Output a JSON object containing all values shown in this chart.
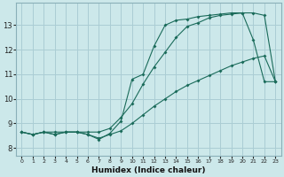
{
  "xlabel": "Humidex (Indice chaleur)",
  "background_color": "#cce8ea",
  "grid_color": "#aacdd4",
  "line_color": "#1a6b5a",
  "xlim": [
    -0.5,
    23.5
  ],
  "ylim": [
    7.7,
    13.9
  ],
  "xticks": [
    0,
    1,
    2,
    3,
    4,
    5,
    6,
    7,
    8,
    9,
    10,
    11,
    12,
    13,
    14,
    15,
    16,
    17,
    18,
    19,
    20,
    21,
    22,
    23
  ],
  "yticks": [
    8,
    9,
    10,
    11,
    12,
    13
  ],
  "series1_x": [
    0,
    1,
    2,
    3,
    4,
    5,
    6,
    7,
    8,
    9,
    10,
    11,
    12,
    13,
    14,
    15,
    16,
    17,
    18,
    19,
    20,
    21,
    22,
    23
  ],
  "series1_y": [
    8.65,
    8.55,
    8.65,
    8.55,
    8.65,
    8.65,
    8.55,
    8.35,
    8.6,
    9.1,
    10.8,
    11.0,
    12.15,
    13.0,
    13.2,
    13.25,
    13.35,
    13.4,
    13.45,
    13.5,
    13.5,
    12.4,
    10.7,
    10.7
  ],
  "series2_x": [
    0,
    1,
    2,
    3,
    4,
    5,
    6,
    7,
    8,
    9,
    10,
    11,
    12,
    13,
    14,
    15,
    16,
    17,
    18,
    19,
    20,
    21,
    22,
    23
  ],
  "series2_y": [
    8.65,
    8.55,
    8.65,
    8.65,
    8.65,
    8.65,
    8.65,
    8.65,
    8.8,
    9.25,
    9.8,
    10.6,
    11.3,
    11.9,
    12.5,
    12.95,
    13.1,
    13.3,
    13.4,
    13.45,
    13.5,
    13.5,
    13.4,
    10.7
  ],
  "series3_x": [
    0,
    1,
    2,
    3,
    4,
    5,
    6,
    7,
    8,
    9,
    10,
    11,
    12,
    13,
    14,
    15,
    16,
    17,
    18,
    19,
    20,
    21,
    22,
    23
  ],
  "series3_y": [
    8.65,
    8.55,
    8.65,
    8.55,
    8.65,
    8.65,
    8.55,
    8.4,
    8.55,
    8.7,
    9.0,
    9.35,
    9.7,
    10.0,
    10.3,
    10.55,
    10.75,
    10.95,
    11.15,
    11.35,
    11.5,
    11.65,
    11.75,
    10.7
  ]
}
